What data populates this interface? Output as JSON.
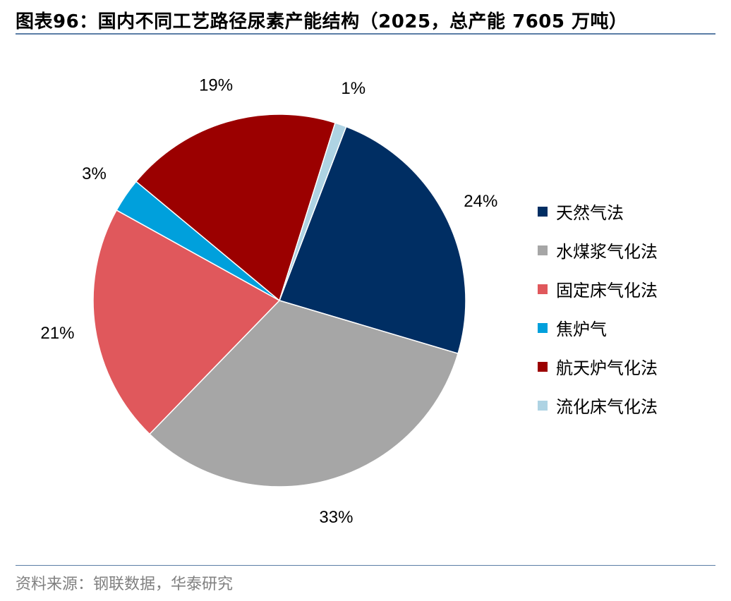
{
  "header": {
    "title": "图表96：国内不同工艺路径尿素产能结构（2025，总产能 7605 万吨）"
  },
  "footer": {
    "source": "资料来源：钢联数据，华泰研究"
  },
  "chart_data": {
    "type": "pie",
    "title": "图表96：国内不同工艺路径尿素产能结构（2025，总产能 7605 万吨）",
    "slices": [
      {
        "name": "天然气法",
        "value": 24,
        "label": "24%",
        "color": "#002e63"
      },
      {
        "name": "水煤浆气化法",
        "value": 33,
        "label": "33%",
        "color": "#a6a6a6"
      },
      {
        "name": "固定床气化法",
        "value": 21,
        "label": "21%",
        "color": "#e0585c"
      },
      {
        "name": "焦炉气",
        "value": 3,
        "label": "3%",
        "color": "#00a0dc"
      },
      {
        "name": "航天炉气化法",
        "value": 19,
        "label": "19%",
        "color": "#9b0000"
      },
      {
        "name": "流化床气化法",
        "value": 1,
        "label": "1%",
        "color": "#aed3e3"
      }
    ],
    "legend_position": "right"
  }
}
